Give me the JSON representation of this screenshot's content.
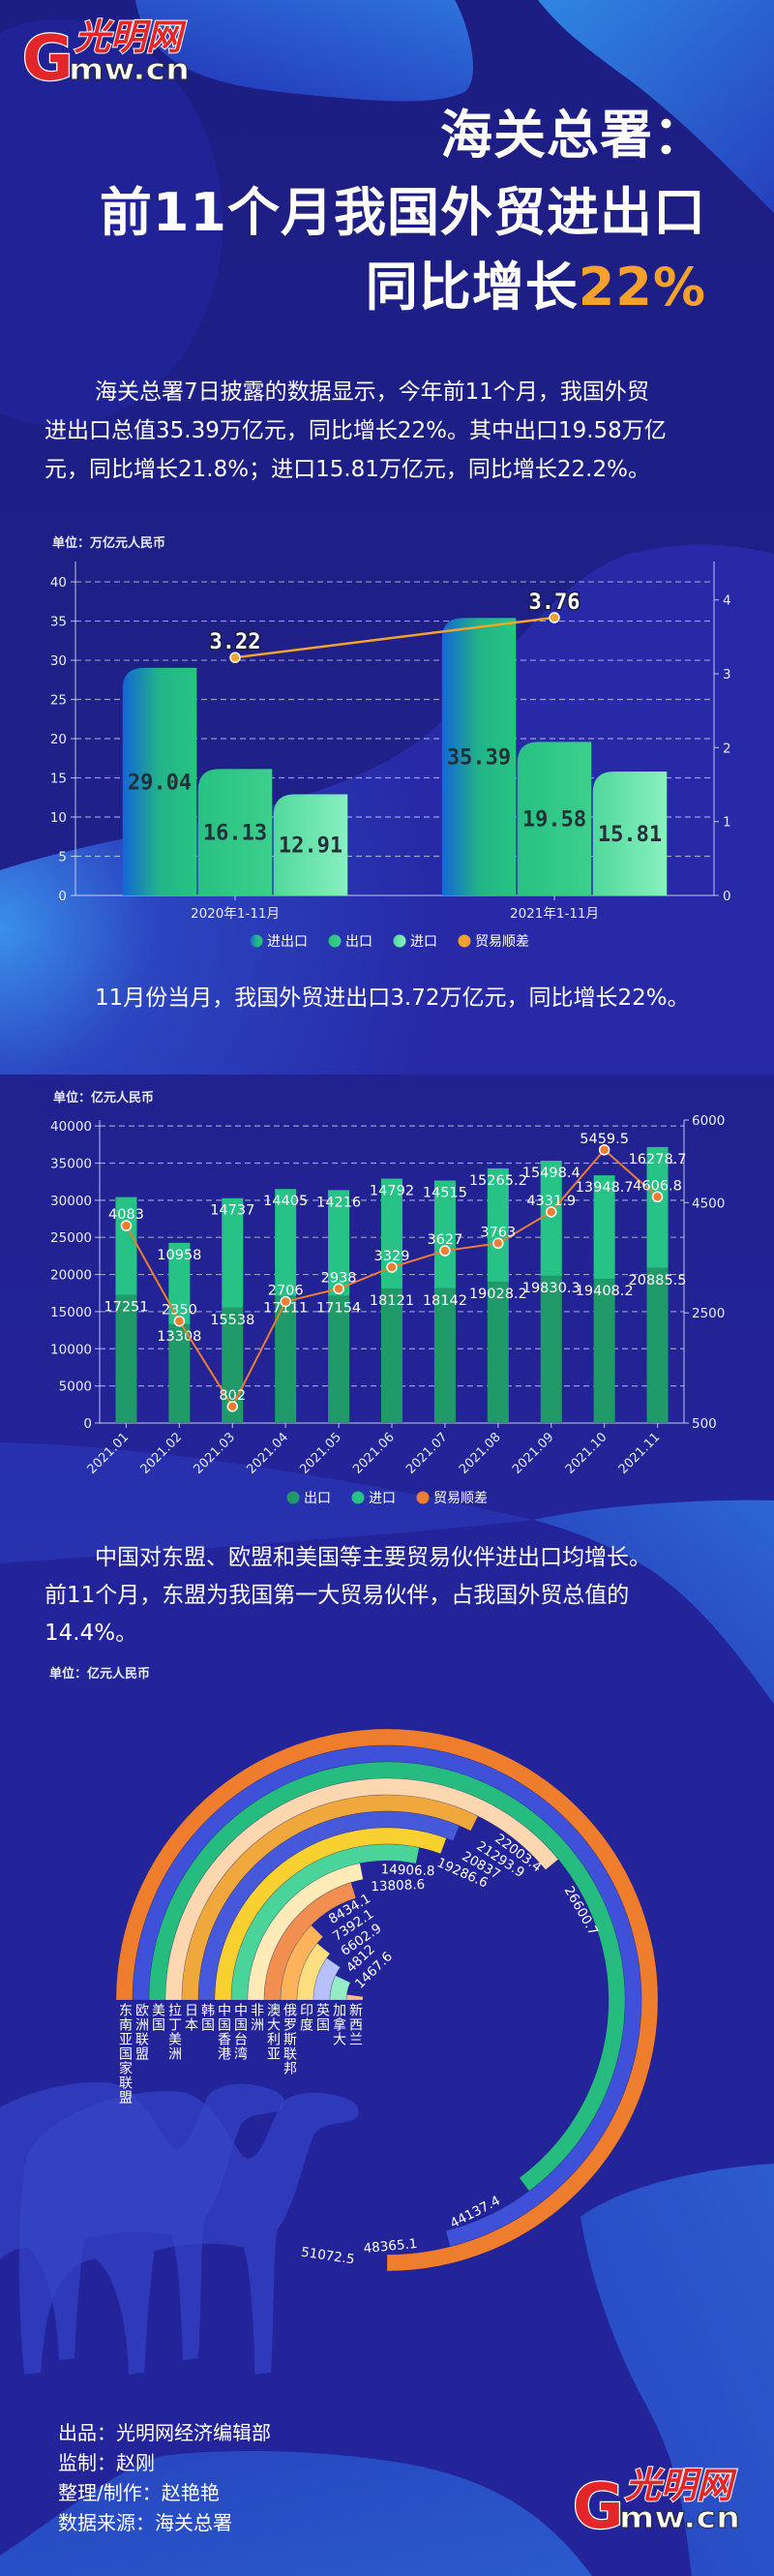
{
  "logo_top": {
    "letter": "G",
    "cn": "光明网",
    "en": "mw.cn"
  },
  "title": {
    "line1": "海关总署：",
    "line2": "前11个月我国外贸进出口",
    "line3_prefix": "同比增长",
    "line3_highlight": "22%"
  },
  "paragraph1": {
    "lines": [
      "海关总署7日披露的数据显示，今年前11个月，我国外贸",
      "进出口总值35.39万亿元，同比增长22%。其中出口19.58万亿",
      "元，同比增长21.8%；进口15.81万亿元，同比增长22.2%。"
    ]
  },
  "paragraph2": {
    "lines": [
      "11月份当月，我国外贸进出口3.72万亿元，同比增长22%。"
    ]
  },
  "paragraph3": {
    "lines": [
      "中国对东盟、欧盟和美国等主要贸易伙伴进出口均增长。",
      "前11个月，东盟为我国第一大贸易伙伴，占我国外贸总值的",
      "14.4%。"
    ]
  },
  "credits": [
    {
      "label": "出品：",
      "value": "光明网经济编辑部"
    },
    {
      "label": "监制：",
      "value": "赵刚"
    },
    {
      "label": "整理/制作：",
      "value": "赵艳艳"
    },
    {
      "label": "数据来源：",
      "value": "海关总署"
    }
  ],
  "logo_bottom": {
    "letter": "G",
    "cn": "光明网",
    "en": "mw.cn"
  },
  "colors": {
    "background": "#1F1F88",
    "highlight": "#F5A12B",
    "logo_red": "#E3262A",
    "text": "#FFFFFF"
  },
  "chart_data": [
    {
      "type": "bar",
      "title": "",
      "unit_label": "单位：万亿元人民币",
      "xlabel": "",
      "ylabel": "万亿元人民币",
      "categories": [
        "2020年1-11月",
        "2021年1-11月"
      ],
      "series": [
        {
          "name": "进出口",
          "type": "bar",
          "values": [
            29.04,
            35.39
          ],
          "gradient": [
            "#1466D8",
            "#22B487",
            "#27C483"
          ]
        },
        {
          "name": "出口",
          "type": "bar",
          "values": [
            16.13,
            19.58
          ],
          "gradient": [
            "#27C182",
            "#3CCF8D"
          ]
        },
        {
          "name": "进口",
          "type": "bar",
          "values": [
            12.91,
            15.81
          ],
          "gradient": [
            "#50D89C",
            "#88F0BF"
          ]
        },
        {
          "name": "贸易顺差",
          "type": "line",
          "axis": "right",
          "values": [
            3.22,
            3.76
          ],
          "color": "#F2A32E"
        }
      ],
      "y_left": {
        "ticks": [
          0,
          5,
          10,
          15,
          20,
          25,
          30,
          35,
          40
        ],
        "range": [
          0,
          42.6
        ]
      },
      "y_right": {
        "ticks": [
          0,
          1,
          2,
          3,
          4
        ],
        "range": [
          0,
          4.52
        ]
      },
      "grid": true,
      "legend_position": "bottom"
    },
    {
      "type": "bar",
      "stacked": true,
      "title": "",
      "unit_label": "单位：亿元人民币",
      "xlabel": "",
      "ylabel": "亿元人民币",
      "categories": [
        "2021.01",
        "2021.02",
        "2021.03",
        "2021.04",
        "2021.05",
        "2021.06",
        "2021.07",
        "2021.08",
        "2021.09",
        "2021.10",
        "2021.11"
      ],
      "series": [
        {
          "name": "出口",
          "type": "bar",
          "values": [
            17251,
            13308,
            15538,
            17111,
            17154,
            18121,
            18142,
            19028.2,
            19830.3,
            19408.2,
            20885.5
          ],
          "color": "#1F9A68"
        },
        {
          "name": "进口",
          "type": "bar",
          "values": [
            13168,
            10958,
            14737,
            14405,
            14216,
            14792,
            14515,
            15265.2,
            15498.4,
            13948.7,
            16278.7
          ],
          "color": "#27C285",
          "hidden_label_indices": [
            0
          ]
        },
        {
          "name": "贸易顺差",
          "type": "line",
          "axis": "right",
          "values": [
            4083,
            2350,
            802,
            2706,
            2938,
            3329,
            3627,
            3763,
            4331.9,
            5459.5,
            4606.8
          ],
          "color": "#EE7D31"
        }
      ],
      "y_left": {
        "ticks": [
          0,
          5000,
          10000,
          15000,
          20000,
          25000,
          30000,
          35000,
          40000
        ],
        "range": [
          0,
          40800
        ]
      },
      "y_right": {
        "ticks": [
          500,
          2500,
          4500,
          6000
        ],
        "range": [
          500,
          6000
        ]
      },
      "grid": true,
      "legend_position": "bottom"
    },
    {
      "type": "bar",
      "subtype": "radial",
      "title": "",
      "unit_label": "单位：亿元人民币",
      "categories": [
        "东南亚国家联盟",
        "欧洲联盟",
        "美国",
        "拉丁美洲",
        "日本",
        "韩国",
        "中国香港",
        "中国台湾",
        "非洲",
        "澳大利亚",
        "俄罗斯联邦",
        "印度",
        "英国",
        "加拿大",
        "新西兰"
      ],
      "values": [
        51072.5,
        48365.1,
        44137.4,
        26600.7,
        22003.4,
        21293.9,
        20837,
        19286.6,
        14906.8,
        13808.6,
        8434.1,
        7392.1,
        6602.9,
        4812,
        1467.6
      ],
      "colors": [
        "#EE7D2E",
        "#3F51D8",
        "#27BC7F",
        "#FDD7AF",
        "#F0A83C",
        "#4759DB",
        "#F8D02F",
        "#4BD49A",
        "#FFEBB8",
        "#F08F50",
        "#FCB35C",
        "#FEDF80",
        "#B6C0FA",
        "#94EBC5",
        "#FCB98E"
      ],
      "angle_axis_max": 68096.7,
      "grid": false
    }
  ]
}
